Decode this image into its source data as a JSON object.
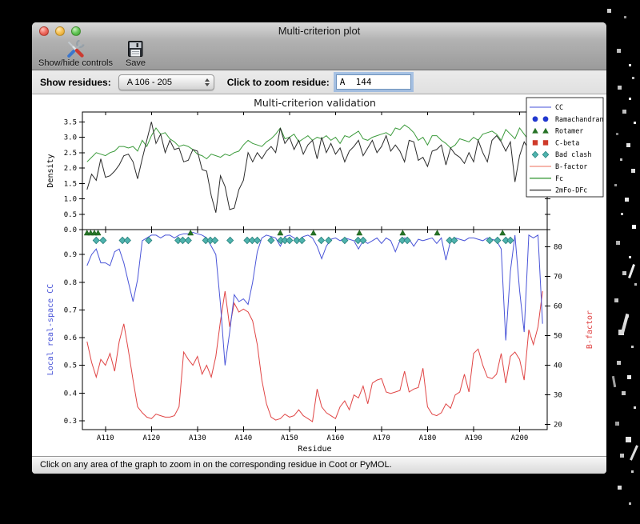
{
  "window": {
    "title": "Multi-criterion plot"
  },
  "toolbar": {
    "buttons": [
      {
        "label": "Show/hide controls",
        "icon": "tools-icon"
      },
      {
        "label": "Save",
        "icon": "save-icon"
      }
    ]
  },
  "controls": {
    "show_residues_label": "Show residues:",
    "show_residues_value": "A 106 - 205",
    "zoom_residue_label": "Click to zoom residue:",
    "zoom_residue_value": "A  144"
  },
  "status_bar": {
    "text": "Click on any area of the graph to zoom in on the corresponding residue in Coot or PyMOL."
  },
  "chart_data": {
    "type": "line",
    "title": "Multi-criterion validation",
    "xlabel": "Residue",
    "x_start": 106,
    "x_range": [
      105,
      206
    ],
    "x_tick_values": [
      110,
      120,
      130,
      140,
      150,
      160,
      170,
      180,
      190,
      200
    ],
    "x_ticks": [
      "A110",
      "A120",
      "A130",
      "A140",
      "A150",
      "A160",
      "A170",
      "A180",
      "A190",
      "A200"
    ],
    "top_panel": {
      "ylabel": "Density",
      "ylim": [
        0,
        3.82
      ],
      "yticks": [
        0.0,
        0.5,
        1.0,
        1.5,
        2.0,
        2.5,
        3.0,
        3.5
      ],
      "series": [
        {
          "name": "Fc",
          "color": "#3c9b3c",
          "values": [
            2.2,
            2.35,
            2.5,
            2.45,
            2.4,
            2.5,
            2.55,
            2.7,
            2.7,
            2.65,
            2.7,
            2.55,
            2.9,
            2.7,
            3.05,
            3.3,
            3.1,
            3.15,
            2.95,
            2.85,
            2.7,
            2.75,
            2.7,
            2.6,
            2.45,
            2.4,
            2.3,
            2.45,
            2.4,
            2.35,
            2.45,
            2.4,
            2.5,
            2.55,
            2.75,
            2.9,
            2.8,
            2.75,
            2.7,
            2.85,
            2.95,
            3.1,
            3.3,
            2.95,
            3.0,
            3.1,
            2.85,
            2.95,
            3.05,
            2.9,
            3.0,
            2.95,
            3.05,
            2.9,
            3.0,
            2.8,
            3.05,
            3.0,
            3.1,
            3.2,
            2.95,
            2.9,
            3.0,
            3.05,
            3.1,
            3.15,
            3.05,
            3.3,
            3.25,
            3.4,
            3.3,
            3.15,
            2.9,
            3.0,
            2.75,
            3.05,
            3.05,
            2.9,
            2.8,
            2.65,
            2.75,
            2.95,
            2.9,
            2.85,
            3.0,
            2.9,
            3.1,
            3.15,
            3.2,
            3.1,
            2.9,
            3.25,
            3.1,
            2.95,
            3.3,
            3.1,
            2.9,
            3.25,
            2.95,
            2.9
          ]
        },
        {
          "name": "2mFo-DFc",
          "color": "#2b2b2b",
          "values": [
            1.3,
            1.8,
            1.6,
            2.3,
            1.7,
            1.75,
            1.9,
            2.1,
            2.4,
            2.45,
            2.2,
            1.65,
            2.3,
            2.9,
            3.5,
            2.8,
            3.1,
            2.5,
            2.9,
            2.6,
            2.65,
            2.2,
            2.25,
            2.6,
            2.55,
            1.95,
            1.9,
            1.1,
            0.55,
            1.75,
            1.4,
            0.65,
            0.7,
            1.3,
            1.6,
            2.5,
            2.2,
            2.5,
            2.3,
            2.55,
            2.7,
            2.5,
            3.3,
            2.8,
            3.0,
            2.6,
            2.9,
            2.45,
            2.75,
            2.9,
            2.3,
            3.0,
            2.5,
            2.8,
            2.45,
            2.65,
            2.2,
            2.55,
            2.7,
            2.9,
            2.4,
            2.65,
            2.9,
            2.5,
            2.7,
            3.05,
            2.55,
            2.75,
            2.55,
            2.2,
            2.9,
            2.85,
            2.25,
            2.35,
            2.05,
            2.55,
            2.6,
            2.75,
            2.1,
            2.65,
            2.45,
            2.35,
            2.15,
            2.5,
            2.2,
            2.9,
            2.5,
            2.2,
            2.9,
            3.05,
            2.85,
            2.55,
            2.85,
            1.55,
            2.4,
            2.85,
            2.6,
            2.9,
            1.9,
            1.45
          ]
        }
      ]
    },
    "bottom_panel": {
      "left_ylabel": "Local real-space CC",
      "left_color": "#4a55d8",
      "left_ylim": [
        0.268,
        0.99
      ],
      "left_yticks": [
        0.3,
        0.4,
        0.5,
        0.6,
        0.7,
        0.8,
        0.9
      ],
      "right_ylabel": "B-factor",
      "right_color": "#e04545",
      "right_ylim": [
        18.3,
        85.8
      ],
      "right_yticks": [
        20,
        30,
        40,
        50,
        60,
        70,
        80
      ],
      "series": [
        {
          "name": "B-factor",
          "axis": "right",
          "color": "#e04545",
          "values": [
            48,
            41,
            36,
            42,
            40,
            44,
            38,
            48,
            54,
            45,
            35,
            26,
            24,
            22.5,
            22,
            23.5,
            23,
            22.5,
            22.5,
            23,
            26,
            44.5,
            42,
            40,
            43,
            37,
            40,
            36,
            43,
            55,
            65,
            53,
            61,
            58,
            59,
            58,
            55,
            47,
            35,
            27,
            22.5,
            21.5,
            22,
            23.5,
            22.5,
            23,
            25,
            23,
            22,
            21,
            32,
            26,
            24,
            23,
            22,
            26,
            28,
            25,
            30,
            29,
            33,
            27,
            34,
            35,
            35.5,
            31,
            30.5,
            31,
            31.5,
            38,
            31,
            32,
            32.5,
            39,
            26,
            23.5,
            23,
            24,
            27,
            25.5,
            30,
            31,
            37,
            31,
            44,
            45.5,
            40,
            36,
            35.5,
            37,
            44,
            34,
            43,
            44.5,
            42,
            35,
            52,
            47,
            53,
            65
          ]
        },
        {
          "name": "CC",
          "axis": "left",
          "color": "#4a55d8",
          "values": [
            0.86,
            0.9,
            0.92,
            0.87,
            0.87,
            0.86,
            0.91,
            0.92,
            0.87,
            0.8,
            0.73,
            0.81,
            0.95,
            0.96,
            0.97,
            0.97,
            0.96,
            0.97,
            0.97,
            0.96,
            0.97,
            0.975,
            0.975,
            0.98,
            0.975,
            0.97,
            0.96,
            0.93,
            0.9,
            0.72,
            0.5,
            0.62,
            0.755,
            0.73,
            0.74,
            0.72,
            0.8,
            0.91,
            0.96,
            0.97,
            0.965,
            0.96,
            0.93,
            0.965,
            0.97,
            0.96,
            0.95,
            0.965,
            0.97,
            0.96,
            0.93,
            0.885,
            0.93,
            0.955,
            0.96,
            0.95,
            0.96,
            0.955,
            0.95,
            0.92,
            0.95,
            0.94,
            0.95,
            0.96,
            0.94,
            0.96,
            0.95,
            0.91,
            0.95,
            0.96,
            0.955,
            0.93,
            0.955,
            0.95,
            0.955,
            0.96,
            0.94,
            0.96,
            0.88,
            0.95,
            0.96,
            0.955,
            0.95,
            0.96,
            0.96,
            0.955,
            0.95,
            0.96,
            0.955,
            0.95,
            0.92,
            0.59,
            0.84,
            0.97,
            0.77,
            0.62,
            0.97,
            0.96,
            0.97,
            0.65
          ]
        }
      ],
      "markers": [
        {
          "name": "Rotamer",
          "shape": "triangle",
          "fill": "#267326",
          "edge": "#1a5c1a",
          "residues": [
            106,
            106.8,
            107.6,
            108.4,
            128.5,
            148,
            155.2,
            165.2,
            174.6,
            182.1,
            196.3
          ]
        },
        {
          "name": "Bad clash",
          "shape": "diamond",
          "fill": "#4fb3ae",
          "edge": "#257f79",
          "residues": [
            108,
            109.5,
            113.7,
            114.8,
            119.4,
            125.8,
            126.8,
            128,
            131.8,
            132.8,
            133.8,
            137.1,
            140.8,
            141.9,
            143,
            146,
            148.1,
            149,
            150,
            151.6,
            152.7,
            156.9,
            158.5,
            162,
            164.9,
            166,
            174.5,
            175.6,
            184.8,
            185.8,
            193.5,
            195.2,
            197,
            198
          ]
        },
        {
          "name": "Ramachandran",
          "shape": "circle",
          "fill": "#2138cf",
          "edge": "#16279d",
          "residues": []
        },
        {
          "name": "C-beta",
          "shape": "square",
          "fill": "#cf3a2a",
          "edge": "#9d2418",
          "residues": []
        }
      ]
    },
    "legend": {
      "position": "top-right",
      "entries": [
        {
          "label": "CC",
          "type": "line",
          "color": "#6a74e0"
        },
        {
          "label": "Ramachandran",
          "type": "circles",
          "color": "#2138cf"
        },
        {
          "label": "Rotamer",
          "type": "triangles",
          "color": "#267326"
        },
        {
          "label": "C-beta",
          "type": "squares",
          "color": "#cf3a2a"
        },
        {
          "label": "Bad clash",
          "type": "diamonds",
          "color": "#4fb3ae"
        },
        {
          "label": "B-factor",
          "type": "line",
          "color": "#f08a7a"
        },
        {
          "label": "Fc",
          "type": "line",
          "color": "#3c9b3c"
        },
        {
          "label": "2mFo-DFc",
          "type": "line",
          "color": "#2b2b2b"
        }
      ]
    }
  }
}
